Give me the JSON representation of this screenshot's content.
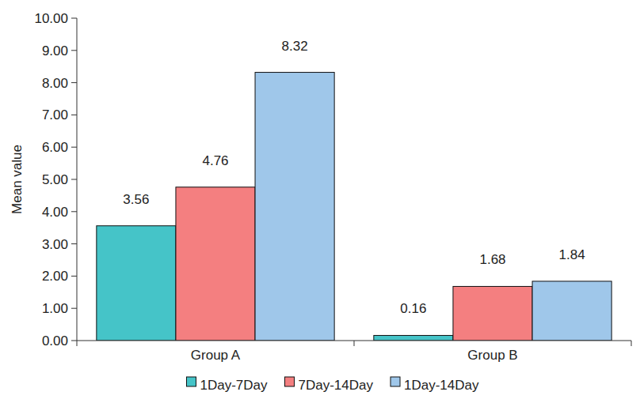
{
  "chart_data": {
    "type": "bar",
    "y_label": "Mean value",
    "categories": [
      "Group A",
      "Group B"
    ],
    "series": [
      {
        "name": "1Day-7Day",
        "color": "#45c4c8",
        "values": [
          3.56,
          0.16
        ]
      },
      {
        "name": "7Day-14Day",
        "color": "#f47f80",
        "values": [
          4.76,
          1.68
        ]
      },
      {
        "name": "1Day-14Day",
        "color": "#9fc7ea",
        "values": [
          8.32,
          1.84
        ]
      }
    ],
    "ylim": [
      0,
      10
    ],
    "yticks": [
      {
        "value": 0,
        "label": "0.00"
      },
      {
        "value": 1,
        "label": "1.00"
      },
      {
        "value": 2,
        "label": "2.00"
      },
      {
        "value": 3,
        "label": "3.00"
      },
      {
        "value": 4,
        "label": "4.00"
      },
      {
        "value": 5,
        "label": "5.00"
      },
      {
        "value": 6,
        "label": "6.00"
      },
      {
        "value": 7,
        "label": "7.00"
      },
      {
        "value": 8,
        "label": "8.00"
      },
      {
        "value": 9,
        "label": "9.00"
      },
      {
        "value": 10,
        "label": "10.00"
      }
    ],
    "grid": false,
    "legend": "bottom",
    "data_labels": true
  }
}
